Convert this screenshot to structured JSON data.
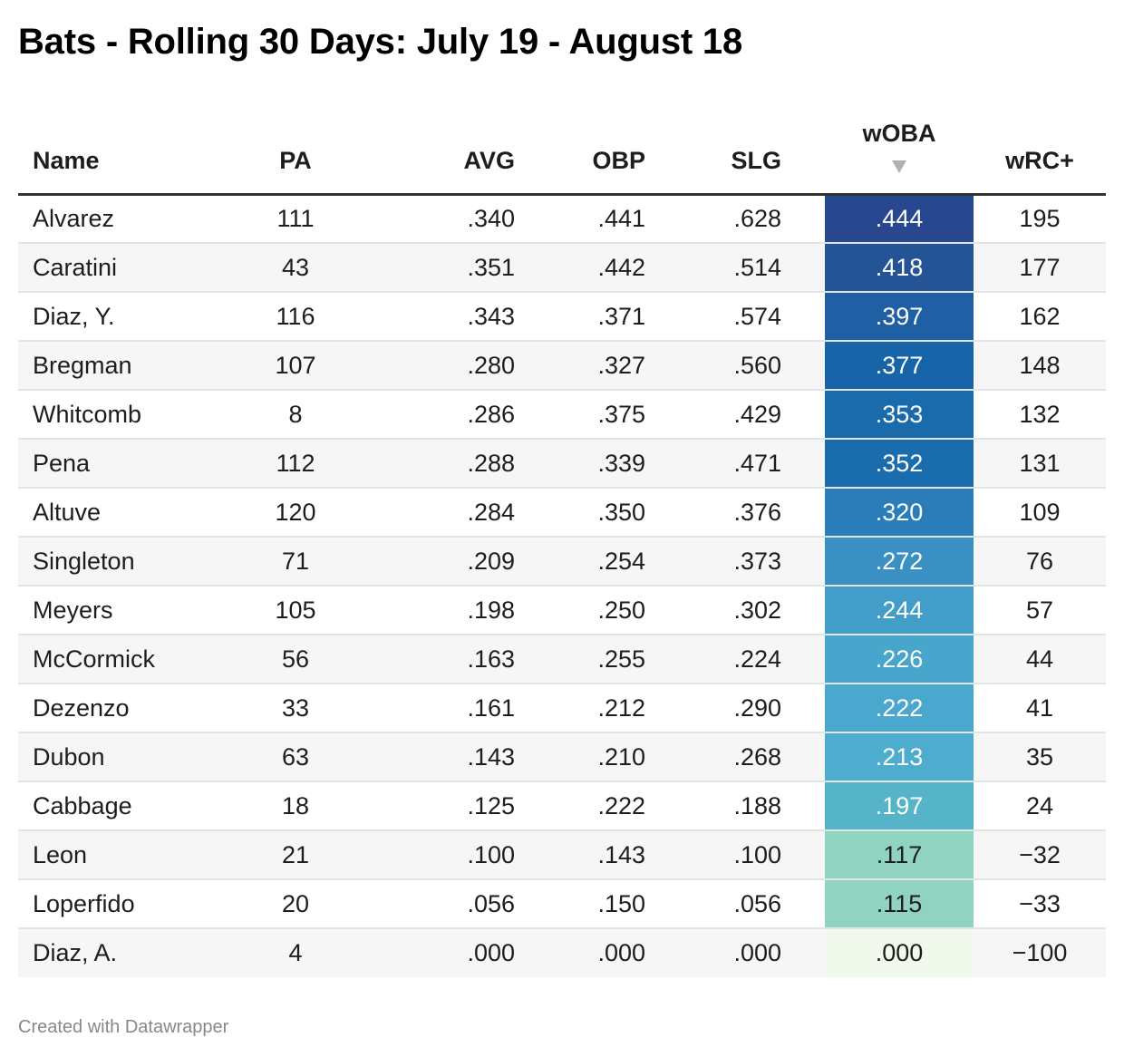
{
  "title": "Bats - Rolling 30 Days: July 19 - August 18",
  "footer": "Created with Datawrapper",
  "sort_icon": "triangle-down-icon",
  "colors": {
    "heat_high": "#27478f",
    "heat_mid": "#52b2cc",
    "heat_low_green": "#8fd3c0",
    "heat_zero": "#f1f8ec",
    "header_rule": "#333333",
    "zebra": "#f6f6f6"
  },
  "chart_data": {
    "type": "table",
    "columns": [
      "Name",
      "PA",
      "AVG",
      "OBP",
      "SLG",
      "wOBA",
      "wRC+"
    ],
    "sorted_by": "wOBA",
    "sort_order": "descending",
    "rows": [
      {
        "name": "Alvarez",
        "pa": "111",
        "avg": ".340",
        "obp": ".441",
        "slg": ".628",
        "woba": ".444",
        "wrc": "195",
        "bg": "#27478f",
        "fg": "#ffffff"
      },
      {
        "name": "Caratini",
        "pa": "43",
        "avg": ".351",
        "obp": ".442",
        "slg": ".514",
        "woba": ".418",
        "wrc": "177",
        "bg": "#245396",
        "fg": "#ffffff"
      },
      {
        "name": "Diaz, Y.",
        "pa": "116",
        "avg": ".343",
        "obp": ".371",
        "slg": ".574",
        "woba": ".397",
        "wrc": "162",
        "bg": "#1f5fa3",
        "fg": "#ffffff"
      },
      {
        "name": "Bregman",
        "pa": "107",
        "avg": ".280",
        "obp": ".327",
        "slg": ".560",
        "woba": ".377",
        "wrc": "148",
        "bg": "#1765a8",
        "fg": "#ffffff"
      },
      {
        "name": "Whitcomb",
        "pa": "8",
        "avg": ".286",
        "obp": ".375",
        "slg": ".429",
        "woba": ".353",
        "wrc": "132",
        "bg": "#1a6bac",
        "fg": "#ffffff"
      },
      {
        "name": "Pena",
        "pa": "112",
        "avg": ".288",
        "obp": ".339",
        "slg": ".471",
        "woba": ".352",
        "wrc": "131",
        "bg": "#1a6dad",
        "fg": "#ffffff"
      },
      {
        "name": "Altuve",
        "pa": "120",
        "avg": ".284",
        "obp": ".350",
        "slg": ".376",
        "woba": ".320",
        "wrc": "109",
        "bg": "#2a7db8",
        "fg": "#ffffff"
      },
      {
        "name": "Singleton",
        "pa": "71",
        "avg": ".209",
        "obp": ".254",
        "slg": ".373",
        "woba": ".272",
        "wrc": "76",
        "bg": "#3a90c3",
        "fg": "#ffffff"
      },
      {
        "name": "Meyers",
        "pa": "105",
        "avg": ".198",
        "obp": ".250",
        "slg": ".302",
        "woba": ".244",
        "wrc": "57",
        "bg": "#429dc9",
        "fg": "#ffffff"
      },
      {
        "name": "McCormick",
        "pa": "56",
        "avg": ".163",
        "obp": ".255",
        "slg": ".224",
        "woba": ".226",
        "wrc": "44",
        "bg": "#48a5cc",
        "fg": "#ffffff"
      },
      {
        "name": "Dezenzo",
        "pa": "33",
        "avg": ".161",
        "obp": ".212",
        "slg": ".290",
        "woba": ".222",
        "wrc": "41",
        "bg": "#4aa7cd",
        "fg": "#ffffff"
      },
      {
        "name": "Dubon",
        "pa": "63",
        "avg": ".143",
        "obp": ".210",
        "slg": ".268",
        "woba": ".213",
        "wrc": "35",
        "bg": "#4eacce",
        "fg": "#ffffff"
      },
      {
        "name": "Cabbage",
        "pa": "18",
        "avg": ".125",
        "obp": ".222",
        "slg": ".188",
        "woba": ".197",
        "wrc": "24",
        "bg": "#56b4c8",
        "fg": "#ffffff"
      },
      {
        "name": "Leon",
        "pa": "21",
        "avg": ".100",
        "obp": ".143",
        "slg": ".100",
        "woba": ".117",
        "wrc": "−32",
        "bg": "#8fd3c0",
        "fg": "#1d1d1d"
      },
      {
        "name": "Loperfido",
        "pa": "20",
        "avg": ".056",
        "obp": ".150",
        "slg": ".056",
        "woba": ".115",
        "wrc": "−33",
        "bg": "#90d3c1",
        "fg": "#1d1d1d"
      },
      {
        "name": "Diaz, A.",
        "pa": "4",
        "avg": ".000",
        "obp": ".000",
        "slg": ".000",
        "woba": ".000",
        "wrc": "−100",
        "bg": "#f1f8ec",
        "fg": "#1d1d1d"
      }
    ]
  }
}
